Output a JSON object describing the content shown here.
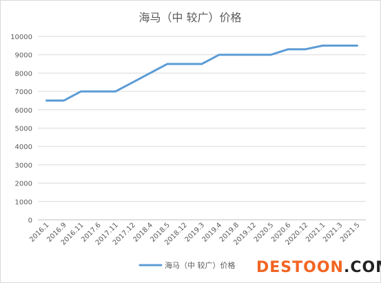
{
  "colors": {
    "series": "#5b9bd5",
    "watermark_orange": "#f26522",
    "watermark_dark": "#222222",
    "grid": "#d9d9d9",
    "text": "#595959"
  },
  "watermark": {
    "part1": "DESTOON",
    "part2": ".COM"
  },
  "chart_data": {
    "type": "line",
    "title": "海马（中 较广）价格",
    "xlabel": "",
    "ylabel": "",
    "ylim": [
      0,
      10000
    ],
    "yticks": [
      0,
      1000,
      2000,
      3000,
      4000,
      5000,
      6000,
      7000,
      8000,
      9000,
      10000
    ],
    "grid": true,
    "legend_position": "bottom",
    "categories": [
      "2016.1",
      "2016.9",
      "2016.11",
      "2017.6",
      "2017.11",
      "2017.12",
      "2018.4",
      "2018.5",
      "2018.12",
      "2019.3",
      "2019.4",
      "2019.8",
      "2019.12",
      "2020.5",
      "2020.6",
      "2020.12",
      "2021.1",
      "2021.3",
      "2021.5"
    ],
    "series": [
      {
        "name": "海马（中 较广）价格",
        "values": [
          6500,
          6500,
          7000,
          7000,
          7000,
          7500,
          8000,
          8500,
          8500,
          8500,
          9000,
          9000,
          9000,
          9000,
          9300,
          9300,
          9500,
          9500,
          9500
        ]
      }
    ]
  }
}
